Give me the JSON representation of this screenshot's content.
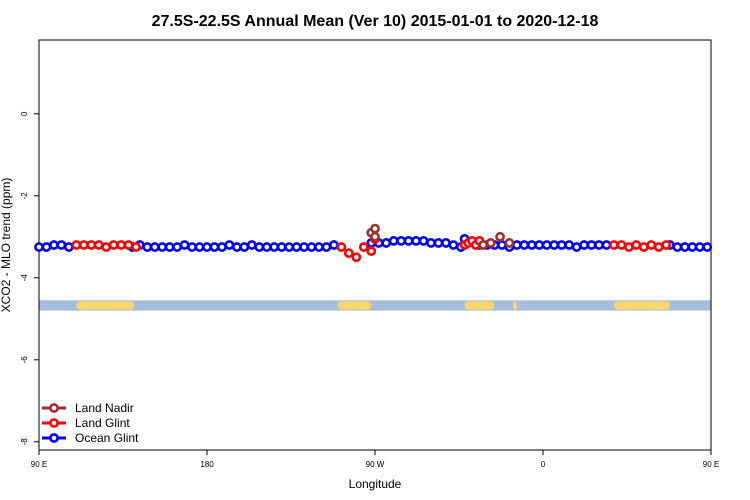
{
  "chart_data": {
    "type": "scatter",
    "title": "27.5S-22.5S Annual Mean (Ver 10)   2015-01-01 to 2020-12-18",
    "xlabel": "Longitude",
    "ylabel": "XCO2 - MLO trend (ppm)",
    "xlim": [
      0,
      360
    ],
    "ylim": [
      -8.2,
      1.8
    ],
    "x_ticks": [
      {
        "value": 0,
        "label": "90 E"
      },
      {
        "value": 90,
        "label": "180"
      },
      {
        "value": 180,
        "label": "90 W"
      },
      {
        "value": 270,
        "label": "0"
      },
      {
        "value": 360,
        "label": "90 E"
      },
      {
        "value": 450,
        "label": "180"
      }
    ],
    "y_ticks": [
      {
        "value": 0,
        "label": "0"
      },
      {
        "value": -2,
        "label": "-2"
      },
      {
        "value": -4,
        "label": "-4"
      },
      {
        "value": -6,
        "label": "-6"
      },
      {
        "value": -8,
        "label": "-8"
      }
    ],
    "legend_position": "bottom-left",
    "land_mask": {
      "y_range": [
        -4.8,
        -4.55
      ],
      "ocean_color": "#a6bddb",
      "land_color": "#fdd66e",
      "land_segments": [
        [
          20,
          51
        ],
        [
          160,
          178
        ],
        [
          228,
          244
        ],
        [
          254,
          256
        ],
        [
          308,
          338
        ]
      ]
    },
    "series": [
      {
        "name": "Land Nadir",
        "color": "#a52a2a",
        "points": [
          [
            178,
            -2.9
          ],
          [
            180,
            -2.8
          ],
          [
            180,
            -3.0
          ],
          [
            238,
            -3.2
          ],
          [
            242,
            -3.15
          ],
          [
            247,
            -3.0
          ],
          [
            252,
            -3.15
          ]
        ]
      },
      {
        "name": "Land Glint",
        "color": "#ff0000",
        "points": [
          [
            20,
            -3.2
          ],
          [
            24,
            -3.2
          ],
          [
            28,
            -3.2
          ],
          [
            32,
            -3.2
          ],
          [
            36,
            -3.25
          ],
          [
            40,
            -3.2
          ],
          [
            44,
            -3.2
          ],
          [
            48,
            -3.2
          ],
          [
            52,
            -3.25
          ],
          [
            162,
            -3.25
          ],
          [
            166,
            -3.4
          ],
          [
            170,
            -3.5
          ],
          [
            174,
            -3.25
          ],
          [
            178,
            -3.35
          ],
          [
            180,
            -3.05
          ],
          [
            228,
            -3.2
          ],
          [
            230,
            -3.15
          ],
          [
            232,
            -3.1
          ],
          [
            234,
            -3.2
          ],
          [
            236,
            -3.1
          ],
          [
            308,
            -3.2
          ],
          [
            312,
            -3.2
          ],
          [
            316,
            -3.25
          ],
          [
            320,
            -3.2
          ],
          [
            324,
            -3.25
          ],
          [
            328,
            -3.2
          ],
          [
            332,
            -3.25
          ],
          [
            336,
            -3.2
          ]
        ]
      },
      {
        "name": "Ocean Glint",
        "color": "#0000ff",
        "points": [
          [
            0,
            -3.25
          ],
          [
            4,
            -3.25
          ],
          [
            8,
            -3.2
          ],
          [
            12,
            -3.2
          ],
          [
            16,
            -3.25
          ],
          [
            50,
            -3.25
          ],
          [
            54,
            -3.2
          ],
          [
            58,
            -3.25
          ],
          [
            62,
            -3.25
          ],
          [
            66,
            -3.25
          ],
          [
            70,
            -3.25
          ],
          [
            74,
            -3.25
          ],
          [
            78,
            -3.2
          ],
          [
            82,
            -3.25
          ],
          [
            86,
            -3.25
          ],
          [
            90,
            -3.25
          ],
          [
            94,
            -3.25
          ],
          [
            98,
            -3.25
          ],
          [
            102,
            -3.2
          ],
          [
            106,
            -3.25
          ],
          [
            110,
            -3.25
          ],
          [
            114,
            -3.2
          ],
          [
            118,
            -3.25
          ],
          [
            122,
            -3.25
          ],
          [
            126,
            -3.25
          ],
          [
            130,
            -3.25
          ],
          [
            134,
            -3.25
          ],
          [
            138,
            -3.25
          ],
          [
            142,
            -3.25
          ],
          [
            146,
            -3.25
          ],
          [
            150,
            -3.25
          ],
          [
            154,
            -3.25
          ],
          [
            158,
            -3.2
          ],
          [
            178,
            -3.15
          ],
          [
            182,
            -3.15
          ],
          [
            186,
            -3.15
          ],
          [
            190,
            -3.1
          ],
          [
            194,
            -3.1
          ],
          [
            198,
            -3.1
          ],
          [
            202,
            -3.1
          ],
          [
            206,
            -3.1
          ],
          [
            210,
            -3.15
          ],
          [
            214,
            -3.15
          ],
          [
            218,
            -3.15
          ],
          [
            222,
            -3.2
          ],
          [
            226,
            -3.25
          ],
          [
            228,
            -3.05
          ],
          [
            236,
            -3.2
          ],
          [
            240,
            -3.2
          ],
          [
            244,
            -3.2
          ],
          [
            248,
            -3.2
          ],
          [
            252,
            -3.25
          ],
          [
            256,
            -3.2
          ],
          [
            260,
            -3.2
          ],
          [
            264,
            -3.2
          ],
          [
            268,
            -3.2
          ],
          [
            272,
            -3.2
          ],
          [
            276,
            -3.2
          ],
          [
            280,
            -3.2
          ],
          [
            284,
            -3.2
          ],
          [
            288,
            -3.25
          ],
          [
            292,
            -3.2
          ],
          [
            296,
            -3.2
          ],
          [
            300,
            -3.2
          ],
          [
            304,
            -3.2
          ],
          [
            338,
            -3.2
          ],
          [
            342,
            -3.25
          ],
          [
            346,
            -3.25
          ],
          [
            350,
            -3.25
          ],
          [
            354,
            -3.25
          ],
          [
            358,
            -3.25
          ]
        ]
      }
    ]
  }
}
